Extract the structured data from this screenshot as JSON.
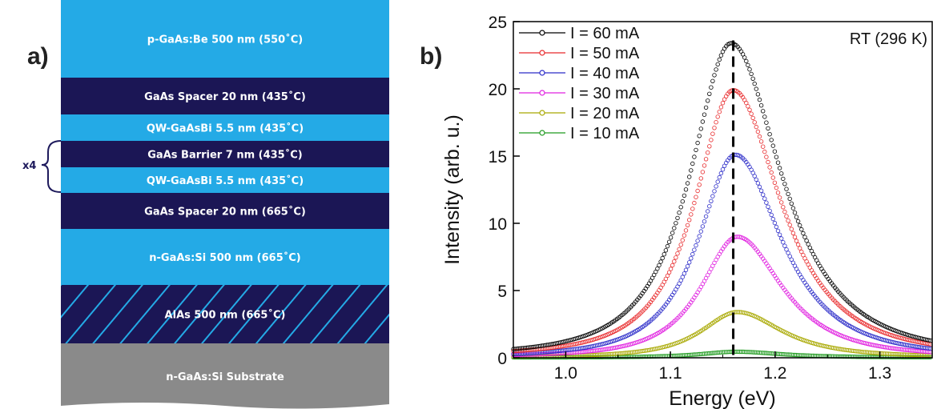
{
  "panel_a": {
    "label": "a)",
    "repeat_label": "x4",
    "colors": {
      "light": "#24aae6",
      "dark": "#1b1655",
      "substrate": "#8a8a8a",
      "hatch": "#24aae6"
    },
    "layers": [
      {
        "text": "p-GaAs:Be 500 nm (550˚C)",
        "kind": "light"
      },
      {
        "text": "GaAs Spacer 20 nm (435˚C)",
        "kind": "dark"
      },
      {
        "text": "QW-GaAsBi 5.5 nm (435˚C)",
        "kind": "light"
      },
      {
        "text": "GaAs Barrier 7 nm (435˚C)",
        "kind": "dark"
      },
      {
        "text": "QW-GaAsBi 5.5 nm (435˚C)",
        "kind": "light"
      },
      {
        "text": "GaAs Spacer 20 nm (665˚C)",
        "kind": "dark"
      },
      {
        "text": "n-GaAs:Si 500 nm (665˚C)",
        "kind": "light"
      },
      {
        "text": "AlAs 500 nm (665˚C)",
        "kind": "hatched"
      },
      {
        "text": "n-GaAs:Si Substrate",
        "kind": "substrate"
      }
    ]
  },
  "panel_b": {
    "label": "b)",
    "annotation": "RT (296 K)"
  },
  "chart_data": {
    "type": "scatter",
    "xlabel": "Energy (eV)",
    "ylabel": "Intensity (arb. u.)",
    "xlim": [
      0.95,
      1.35
    ],
    "ylim": [
      0,
      25
    ],
    "xticks": [
      "1.0",
      "1.1",
      "1.2",
      "1.3"
    ],
    "xtick_values": [
      1.0,
      1.1,
      1.2,
      1.3
    ],
    "yticks": [
      "0",
      "5",
      "10",
      "15",
      "20",
      "25"
    ],
    "ytick_values": [
      0,
      5,
      10,
      15,
      20,
      25
    ],
    "marker": "open-circle",
    "legend_position": "top-left",
    "reference_line": {
      "x": 1.16,
      "style": "dashed",
      "color": "#000000"
    },
    "series": [
      {
        "name": "I = 60 mA",
        "color": "#000000",
        "peak_x": 1.158,
        "peak_y": 23.4,
        "width_low": 0.062,
        "width_high": 0.076,
        "baseline": 0.2
      },
      {
        "name": "I = 50 mA",
        "color": "#e8282a",
        "peak_x": 1.16,
        "peak_y": 19.9,
        "width_low": 0.058,
        "width_high": 0.072,
        "baseline": 0.2
      },
      {
        "name": "I = 40 mA",
        "color": "#2a2ac8",
        "peak_x": 1.162,
        "peak_y": 15.1,
        "width_low": 0.056,
        "width_high": 0.07,
        "baseline": 0.1
      },
      {
        "name": "I = 30 mA",
        "color": "#e020e0",
        "peak_x": 1.164,
        "peak_y": 9.0,
        "width_low": 0.055,
        "width_high": 0.068,
        "baseline": 0.1
      },
      {
        "name": "I = 20 mA",
        "color": "#a8a800",
        "peak_x": 1.164,
        "peak_y": 3.4,
        "width_low": 0.055,
        "width_high": 0.068,
        "baseline": 0.05
      },
      {
        "name": "I = 10 mA",
        "color": "#1e9a1e",
        "peak_x": 1.163,
        "peak_y": 0.45,
        "width_low": 0.055,
        "width_high": 0.068,
        "baseline": 0.02
      }
    ]
  }
}
